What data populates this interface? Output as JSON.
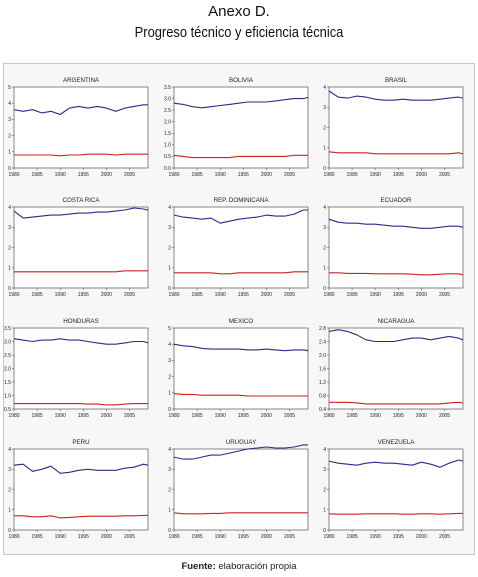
{
  "header": {
    "title": "Anexo D.",
    "subtitle": "Progreso técnico y eficiencia técnica"
  },
  "footer": {
    "source_label": "Fuente:",
    "source_text": "elaboración propia"
  },
  "colors": {
    "series_blue": "#2b2b8a",
    "series_red": "#cc2222"
  },
  "chart_data": [
    {
      "type": "line",
      "title": "ARGENTINA",
      "x": [
        1980,
        1982,
        1984,
        1986,
        1988,
        1990,
        1992,
        1994,
        1996,
        1998,
        2000,
        2002,
        2004,
        2006,
        2008,
        2009
      ],
      "ylim": [
        0,
        5
      ],
      "yticks": [
        0,
        1,
        2,
        3,
        4,
        5
      ],
      "series": [
        {
          "values": [
            3.6,
            3.5,
            3.6,
            3.4,
            3.5,
            3.3,
            3.7,
            3.8,
            3.7,
            3.8,
            3.7,
            3.5,
            3.7,
            3.8,
            3.9,
            3.9
          ],
          "color": "blue"
        },
        {
          "values": [
            0.8,
            0.8,
            0.8,
            0.8,
            0.8,
            0.75,
            0.8,
            0.8,
            0.85,
            0.85,
            0.85,
            0.8,
            0.85,
            0.85,
            0.85,
            0.85
          ],
          "color": "red"
        }
      ]
    },
    {
      "type": "line",
      "title": "BOLIVIA",
      "x": [
        1980,
        1982,
        1984,
        1986,
        1988,
        1990,
        1992,
        1994,
        1996,
        1998,
        2000,
        2002,
        2004,
        2006,
        2008,
        2009
      ],
      "ylim": [
        0.0,
        3.5
      ],
      "yticks": [
        0.0,
        0.5,
        1.0,
        1.5,
        2.0,
        2.5,
        3.0,
        3.5
      ],
      "series": [
        {
          "values": [
            2.8,
            2.75,
            2.65,
            2.6,
            2.65,
            2.7,
            2.75,
            2.8,
            2.85,
            2.85,
            2.85,
            2.9,
            2.95,
            3.0,
            3.0,
            3.05
          ],
          "color": "blue"
        },
        {
          "values": [
            0.55,
            0.5,
            0.45,
            0.45,
            0.45,
            0.45,
            0.45,
            0.5,
            0.5,
            0.5,
            0.5,
            0.5,
            0.5,
            0.55,
            0.55,
            0.55
          ],
          "color": "red"
        }
      ]
    },
    {
      "type": "line",
      "title": "BRASIL",
      "x": [
        1980,
        1982,
        1984,
        1986,
        1988,
        1990,
        1992,
        1994,
        1996,
        1998,
        2000,
        2002,
        2004,
        2006,
        2008,
        2009
      ],
      "ylim": [
        0,
        4
      ],
      "yticks": [
        0,
        1,
        2,
        3,
        4
      ],
      "series": [
        {
          "values": [
            3.8,
            3.5,
            3.45,
            3.55,
            3.5,
            3.4,
            3.35,
            3.35,
            3.4,
            3.35,
            3.35,
            3.35,
            3.4,
            3.45,
            3.5,
            3.45
          ],
          "color": "blue"
        },
        {
          "values": [
            0.8,
            0.75,
            0.75,
            0.75,
            0.75,
            0.7,
            0.7,
            0.7,
            0.7,
            0.7,
            0.7,
            0.7,
            0.7,
            0.7,
            0.75,
            0.7
          ],
          "color": "red"
        }
      ]
    },
    {
      "type": "line",
      "title": "COSTA RICA",
      "x": [
        1980,
        1982,
        1984,
        1986,
        1988,
        1990,
        1992,
        1994,
        1996,
        1998,
        2000,
        2002,
        2004,
        2006,
        2008,
        2009
      ],
      "ylim": [
        0,
        4
      ],
      "yticks": [
        0,
        1,
        2,
        3,
        4
      ],
      "series": [
        {
          "values": [
            3.8,
            3.45,
            3.5,
            3.55,
            3.6,
            3.6,
            3.65,
            3.7,
            3.7,
            3.75,
            3.75,
            3.8,
            3.85,
            3.95,
            3.9,
            3.85
          ],
          "color": "blue"
        },
        {
          "values": [
            0.8,
            0.8,
            0.8,
            0.8,
            0.8,
            0.8,
            0.8,
            0.8,
            0.8,
            0.8,
            0.8,
            0.8,
            0.85,
            0.85,
            0.85,
            0.85
          ],
          "color": "red"
        }
      ]
    },
    {
      "type": "line",
      "title": "REP. DOMINICANA",
      "x": [
        1980,
        1982,
        1984,
        1986,
        1988,
        1990,
        1992,
        1994,
        1996,
        1998,
        2000,
        2002,
        2004,
        2006,
        2008,
        2009
      ],
      "ylim": [
        0,
        4
      ],
      "yticks": [
        0,
        1,
        2,
        3,
        4
      ],
      "series": [
        {
          "values": [
            3.6,
            3.5,
            3.45,
            3.4,
            3.45,
            3.2,
            3.3,
            3.4,
            3.45,
            3.5,
            3.6,
            3.55,
            3.55,
            3.65,
            3.85,
            3.85
          ],
          "color": "blue"
        },
        {
          "values": [
            0.75,
            0.75,
            0.75,
            0.75,
            0.75,
            0.7,
            0.7,
            0.75,
            0.75,
            0.75,
            0.75,
            0.75,
            0.75,
            0.8,
            0.8,
            0.8
          ],
          "color": "red"
        }
      ]
    },
    {
      "type": "line",
      "title": "ECUADOR",
      "x": [
        1980,
        1982,
        1984,
        1986,
        1988,
        1990,
        1992,
        1994,
        1996,
        1998,
        2000,
        2002,
        2004,
        2006,
        2008,
        2009
      ],
      "ylim": [
        0,
        4
      ],
      "yticks": [
        0,
        1,
        2,
        3,
        4
      ],
      "series": [
        {
          "values": [
            3.4,
            3.25,
            3.2,
            3.2,
            3.15,
            3.15,
            3.1,
            3.05,
            3.05,
            3.0,
            2.95,
            2.95,
            3.0,
            3.05,
            3.05,
            3.0
          ],
          "color": "blue"
        },
        {
          "values": [
            0.75,
            0.75,
            0.72,
            0.72,
            0.72,
            0.7,
            0.7,
            0.7,
            0.7,
            0.68,
            0.65,
            0.65,
            0.68,
            0.7,
            0.7,
            0.65
          ],
          "color": "red"
        }
      ]
    },
    {
      "type": "line",
      "title": "HONDURAS",
      "x": [
        1980,
        1982,
        1984,
        1986,
        1988,
        1990,
        1992,
        1994,
        1996,
        1998,
        2000,
        2002,
        2004,
        2006,
        2008,
        2009
      ],
      "ylim": [
        0.5,
        3.5
      ],
      "yticks": [
        0.5,
        1.0,
        1.5,
        2.0,
        2.5,
        3.0,
        3.5
      ],
      "series": [
        {
          "values": [
            3.1,
            3.05,
            3.0,
            3.05,
            3.05,
            3.1,
            3.05,
            3.05,
            3.0,
            2.95,
            2.9,
            2.9,
            2.95,
            3.0,
            3.0,
            2.95
          ],
          "color": "blue"
        },
        {
          "values": [
            0.7,
            0.7,
            0.7,
            0.7,
            0.7,
            0.7,
            0.7,
            0.7,
            0.68,
            0.68,
            0.65,
            0.65,
            0.68,
            0.7,
            0.7,
            0.7
          ],
          "color": "red"
        }
      ]
    },
    {
      "type": "line",
      "title": "MEXICO",
      "x": [
        1980,
        1982,
        1984,
        1986,
        1988,
        1990,
        1992,
        1994,
        1996,
        1998,
        2000,
        2002,
        2004,
        2006,
        2008,
        2009
      ],
      "ylim": [
        0,
        5
      ],
      "yticks": [
        0,
        1,
        2,
        3,
        4,
        5
      ],
      "series": [
        {
          "values": [
            4.0,
            3.9,
            3.85,
            3.75,
            3.7,
            3.7,
            3.7,
            3.7,
            3.65,
            3.65,
            3.7,
            3.65,
            3.6,
            3.65,
            3.65,
            3.6
          ],
          "color": "blue"
        },
        {
          "values": [
            0.95,
            0.9,
            0.9,
            0.85,
            0.85,
            0.85,
            0.85,
            0.85,
            0.8,
            0.8,
            0.8,
            0.8,
            0.8,
            0.8,
            0.8,
            0.8
          ],
          "color": "red"
        }
      ]
    },
    {
      "type": "line",
      "title": "NICARAGUA",
      "x": [
        1980,
        1982,
        1984,
        1986,
        1988,
        1990,
        1992,
        1994,
        1996,
        1998,
        2000,
        2002,
        2004,
        2006,
        2008,
        2009
      ],
      "ylim": [
        0.4,
        2.8
      ],
      "yticks": [
        0.4,
        0.8,
        1.2,
        1.6,
        2.0,
        2.4,
        2.8
      ],
      "series": [
        {
          "values": [
            2.7,
            2.75,
            2.7,
            2.6,
            2.45,
            2.4,
            2.4,
            2.4,
            2.45,
            2.5,
            2.5,
            2.45,
            2.5,
            2.55,
            2.5,
            2.45
          ],
          "color": "blue"
        },
        {
          "values": [
            0.6,
            0.6,
            0.6,
            0.58,
            0.55,
            0.55,
            0.55,
            0.55,
            0.55,
            0.55,
            0.55,
            0.55,
            0.55,
            0.58,
            0.6,
            0.58
          ],
          "color": "red"
        }
      ]
    },
    {
      "type": "line",
      "title": "PERU",
      "x": [
        1980,
        1982,
        1984,
        1986,
        1988,
        1990,
        1992,
        1994,
        1996,
        1998,
        2000,
        2002,
        2004,
        2006,
        2008,
        2009
      ],
      "ylim": [
        0,
        4
      ],
      "yticks": [
        0,
        1,
        2,
        3,
        4
      ],
      "series": [
        {
          "values": [
            3.2,
            3.25,
            2.9,
            3.0,
            3.15,
            2.8,
            2.85,
            2.95,
            3.0,
            2.95,
            2.95,
            2.95,
            3.05,
            3.1,
            3.25,
            3.2
          ],
          "color": "blue"
        },
        {
          "values": [
            0.7,
            0.7,
            0.65,
            0.65,
            0.7,
            0.6,
            0.62,
            0.65,
            0.68,
            0.68,
            0.68,
            0.68,
            0.7,
            0.7,
            0.72,
            0.72
          ],
          "color": "red"
        }
      ]
    },
    {
      "type": "line",
      "title": "URUGUAY",
      "x": [
        1980,
        1982,
        1984,
        1986,
        1988,
        1990,
        1992,
        1994,
        1996,
        1998,
        2000,
        2002,
        2004,
        2006,
        2008,
        2009
      ],
      "ylim": [
        0,
        4
      ],
      "yticks": [
        0,
        1,
        2,
        3,
        4
      ],
      "series": [
        {
          "values": [
            3.6,
            3.5,
            3.5,
            3.6,
            3.7,
            3.7,
            3.8,
            3.9,
            4.0,
            4.05,
            4.1,
            4.05,
            4.05,
            4.1,
            4.2,
            4.2
          ],
          "color": "blue"
        },
        {
          "values": [
            0.85,
            0.8,
            0.8,
            0.8,
            0.82,
            0.82,
            0.85,
            0.85,
            0.85,
            0.85,
            0.85,
            0.85,
            0.85,
            0.85,
            0.85,
            0.85
          ],
          "color": "red"
        }
      ]
    },
    {
      "type": "line",
      "title": "VENEZUELA",
      "x": [
        1980,
        1982,
        1984,
        1986,
        1988,
        1990,
        1992,
        1994,
        1996,
        1998,
        2000,
        2002,
        2004,
        2006,
        2008,
        2009
      ],
      "ylim": [
        0,
        4
      ],
      "yticks": [
        0,
        1,
        2,
        3,
        4
      ],
      "series": [
        {
          "values": [
            3.4,
            3.3,
            3.25,
            3.2,
            3.3,
            3.35,
            3.3,
            3.3,
            3.25,
            3.2,
            3.35,
            3.25,
            3.1,
            3.3,
            3.45,
            3.4
          ],
          "color": "blue"
        },
        {
          "values": [
            0.8,
            0.78,
            0.78,
            0.78,
            0.8,
            0.8,
            0.8,
            0.8,
            0.78,
            0.78,
            0.8,
            0.8,
            0.78,
            0.8,
            0.82,
            0.82
          ],
          "color": "red"
        }
      ]
    }
  ]
}
